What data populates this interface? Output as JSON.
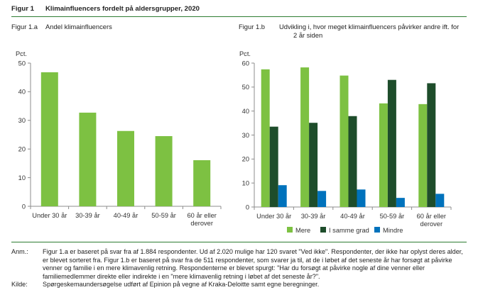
{
  "header": {
    "figure_number": "Figur 1",
    "figure_title": "Klimainfluencers fordelt på aldersgrupper, 2020"
  },
  "colors": {
    "rule": "#2e7d32",
    "mere": "#7dc142",
    "samme": "#1e4d2b",
    "mindre": "#0072bc",
    "bar_single": "#7dc142"
  },
  "chart_data": [
    {
      "type": "bar",
      "subfigure": "Figur 1.a",
      "title": "Andel klimainfluencers",
      "ylabel": "Pct.",
      "categories": [
        "Under 30 år",
        "30-39 år",
        "40-49 år",
        "50-59 år",
        "60 år eller derover"
      ],
      "category_lines": [
        [
          "Under 30 år"
        ],
        [
          "30-39 år"
        ],
        [
          "40-49 år"
        ],
        [
          "50-59 år"
        ],
        [
          "60 år eller",
          "derover"
        ]
      ],
      "values": [
        46.8,
        32.7,
        26.3,
        24.5,
        16.1
      ],
      "ylim": [
        0,
        50
      ],
      "yticks": [
        0,
        10,
        20,
        30,
        40,
        50
      ],
      "grid": false
    },
    {
      "type": "bar",
      "subfigure": "Figur 1.b",
      "title_lines": [
        "Udvikling i, hvor meget klimainfluencers påvirker andre ift. for",
        "2 år siden"
      ],
      "ylabel": "Pct.",
      "categories": [
        "Under 30 år",
        "30-39 år",
        "40-49 år",
        "50-59 år",
        "60 år eller derover"
      ],
      "category_lines": [
        [
          "Under 30 år"
        ],
        [
          "30-39 år"
        ],
        [
          "40-49 år"
        ],
        [
          "50-59 år"
        ],
        [
          "60 år eller",
          "derover"
        ]
      ],
      "series": [
        {
          "name": "Mere",
          "values": [
            57.4,
            58.2,
            54.8,
            43.2,
            42.9
          ]
        },
        {
          "name": "I samme grad",
          "values": [
            33.5,
            35.1,
            37.9,
            53.0,
            51.6
          ]
        },
        {
          "name": "Mindre",
          "values": [
            9.1,
            6.7,
            7.3,
            3.8,
            5.5
          ]
        }
      ],
      "ylim": [
        0,
        60
      ],
      "yticks": [
        0,
        10,
        20,
        30,
        40,
        50,
        60
      ],
      "legend": "bottom",
      "grid": false
    }
  ],
  "notes": {
    "anm_key": "Anm.:",
    "anm_paragraphs": [
      "Figur 1.a er baseret på svar fra af 1.884 respondenter. Ud af 2.020 mulige har 120 svaret \"Ved ikke\". Respondenter, der ikke har oplyst deres alder, er blevet sorteret fra. Figur 1.b er baseret på svar fra de 511 respondenter, som svarer ja til, at de i løbet af det seneste år har forsøgt at påvirke venner og familie i en mere klimavenlig retning. Respondenterne er blevet spurgt: \"Har du forsøgt at påvirke nogle af dine venner eller familiemedlemmer direkte eller indirekte i en \"mere klimavenlig retning i løbet af det seneste år?\"."
    ],
    "kilde_key": "Kilde:",
    "kilde_text": "Spørgeskemaundersøgelse udført af Epinion på vegne af Kraka-Deloitte samt egne beregninger."
  }
}
